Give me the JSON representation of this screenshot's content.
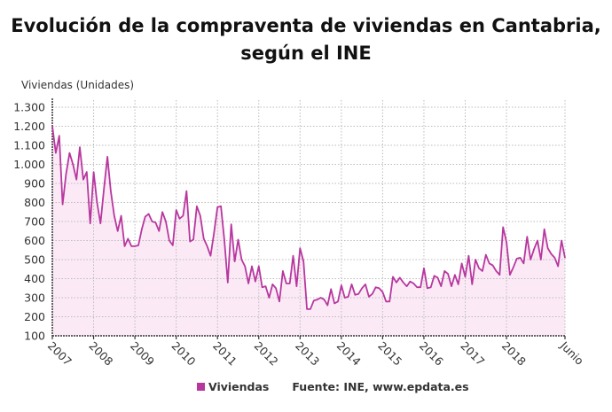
{
  "title_line1": "Evolución de la compraventa de viviendas en Cantabria,",
  "title_line2": "según el INE",
  "source": "Fuente: INE, www.epdata.es",
  "colors": {
    "line": "#b8379f",
    "fill": "#fbeaf6",
    "grid": "#bbbbbb"
  },
  "chart_data": {
    "type": "area",
    "ylabel": "Viviendas (Unidades)",
    "ylim": [
      100,
      1300
    ],
    "yticks": [
      100,
      200,
      300,
      400,
      500,
      600,
      700,
      800,
      900,
      1000,
      1100,
      1200,
      1300
    ],
    "ytick_labels": [
      "100",
      "200",
      "300",
      "400",
      "500",
      "600",
      "700",
      "800",
      "900",
      "1.000",
      "1.100",
      "1.200",
      "1.300"
    ],
    "xtick_labels": [
      "2007",
      "2008",
      "2009",
      "2010",
      "2011",
      "2012",
      "2013",
      "2014",
      "2015",
      "2016",
      "2017",
      "2018",
      "Junio"
    ],
    "x_start": "2007-01",
    "x_end": "2019-06",
    "frequency": "monthly",
    "grid": true,
    "legend_position": "bottom",
    "series": [
      {
        "name": "Viviendas",
        "values": [
          1200,
          1060,
          1150,
          790,
          950,
          1060,
          1000,
          920,
          1090,
          920,
          960,
          690,
          960,
          800,
          690,
          870,
          1040,
          860,
          730,
          650,
          730,
          570,
          610,
          570,
          570,
          575,
          660,
          725,
          740,
          700,
          695,
          650,
          750,
          700,
          600,
          575,
          760,
          715,
          730,
          860,
          595,
          605,
          780,
          730,
          610,
          570,
          520,
          640,
          775,
          780,
          600,
          380,
          685,
          490,
          605,
          500,
          465,
          375,
          465,
          385,
          465,
          355,
          360,
          300,
          370,
          350,
          280,
          440,
          375,
          375,
          520,
          360,
          560,
          490,
          240,
          240,
          285,
          290,
          300,
          290,
          260,
          345,
          270,
          280,
          365,
          300,
          305,
          370,
          315,
          320,
          350,
          370,
          305,
          320,
          355,
          350,
          330,
          280,
          280,
          410,
          380,
          405,
          380,
          360,
          385,
          375,
          355,
          355,
          455,
          350,
          355,
          415,
          405,
          360,
          440,
          425,
          360,
          420,
          370,
          480,
          410,
          520,
          370,
          500,
          455,
          440,
          525,
          480,
          470,
          440,
          420,
          670,
          590,
          420,
          460,
          505,
          510,
          480,
          620,
          500,
          555,
          600,
          500,
          660,
          560,
          530,
          510,
          465,
          600,
          510
        ]
      }
    ]
  }
}
